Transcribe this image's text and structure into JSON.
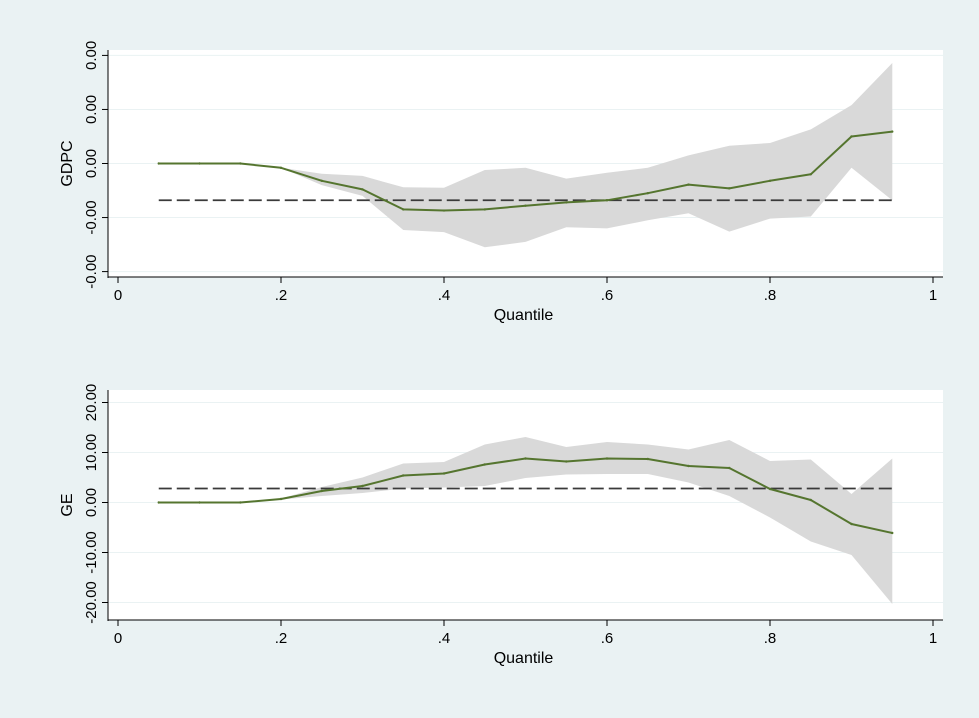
{
  "colors": {
    "outer_bg": "#eaf2f3",
    "plot_bg": "#ffffff",
    "gridline": "#eaf2f3",
    "line": "#55752f",
    "ci_band": "#d9d9d9",
    "ols_line": "#3a3a3a",
    "axis": "#000000"
  },
  "chart_data": [
    {
      "type": "line",
      "title": "",
      "xlabel": "Quantile",
      "ylabel": "GDPC",
      "xlim": [
        0,
        1
      ],
      "ylim": [
        -2.1,
        2.1
      ],
      "x_ticks": [
        0,
        0.2,
        0.4,
        0.6,
        0.8,
        1
      ],
      "x_tick_labels": [
        "0",
        ".2",
        ".4",
        ".6",
        ".8",
        "1"
      ],
      "y_ticks": [
        -2,
        -1,
        0,
        1,
        2
      ],
      "y_tick_labels": [
        "-0.00",
        "-0.00",
        "0.00",
        "0.00",
        "0.00"
      ],
      "grid": true,
      "x": [
        0.05,
        0.1,
        0.15,
        0.2,
        0.25,
        0.3,
        0.35,
        0.4,
        0.45,
        0.5,
        0.55,
        0.6,
        0.65,
        0.7,
        0.75,
        0.8,
        0.85,
        0.9,
        0.95
      ],
      "series": [
        {
          "values": [
            0,
            0,
            0,
            -0.08,
            -0.32,
            -0.48,
            -0.85,
            -0.87,
            -0.85,
            -0.78,
            -0.72,
            -0.68,
            -0.55,
            -0.39,
            -0.46,
            -0.32,
            -0.2,
            0.5,
            0.59
          ],
          "lower": [
            0,
            0,
            0,
            -0.08,
            -0.4,
            -0.6,
            -1.23,
            -1.27,
            -1.55,
            -1.45,
            -1.18,
            -1.2,
            -1.05,
            -0.92,
            -1.26,
            -1.02,
            -0.98,
            -0.08,
            -0.68
          ],
          "upper": [
            0,
            0,
            0,
            -0.08,
            -0.19,
            -0.23,
            -0.44,
            -0.45,
            -0.12,
            -0.08,
            -0.28,
            -0.17,
            -0.08,
            0.15,
            0.33,
            0.38,
            0.63,
            1.08,
            1.86
          ]
        }
      ],
      "reference_line": -0.68
    },
    {
      "type": "line",
      "title": "",
      "xlabel": "Quantile",
      "ylabel": "GE",
      "xlim": [
        0,
        1
      ],
      "ylim": [
        -23.5,
        22.5
      ],
      "x_ticks": [
        0,
        0.2,
        0.4,
        0.6,
        0.8,
        1
      ],
      "x_tick_labels": [
        "0",
        ".2",
        ".4",
        ".6",
        ".8",
        "1"
      ],
      "y_ticks": [
        -20,
        -10,
        0,
        10,
        20
      ],
      "y_tick_labels": [
        "-20.00",
        "-10.00",
        "0.00",
        "10.00",
        "20.00"
      ],
      "grid": true,
      "x": [
        0.05,
        0.1,
        0.15,
        0.2,
        0.25,
        0.3,
        0.35,
        0.4,
        0.45,
        0.5,
        0.55,
        0.6,
        0.65,
        0.7,
        0.75,
        0.8,
        0.85,
        0.9,
        0.95
      ],
      "series": [
        {
          "values": [
            0,
            0,
            0,
            0.7,
            2.3,
            3.3,
            5.4,
            5.8,
            7.6,
            8.8,
            8.2,
            8.8,
            8.7,
            7.3,
            6.9,
            2.7,
            0.5,
            -4.3,
            -6.1
          ],
          "lower": [
            0,
            0,
            0,
            0.6,
            1.3,
            1.9,
            2.8,
            3.0,
            3.3,
            4.9,
            5.6,
            5.7,
            5.7,
            4.0,
            1.3,
            -3.0,
            -7.8,
            -10.5,
            -20.3
          ],
          "upper": [
            0,
            0,
            0,
            0.8,
            3.1,
            5.0,
            7.8,
            8.1,
            11.6,
            13.1,
            11.1,
            12.1,
            11.6,
            10.6,
            12.5,
            8.3,
            8.6,
            1.7,
            8.8
          ]
        }
      ],
      "reference_line": 2.8
    }
  ]
}
